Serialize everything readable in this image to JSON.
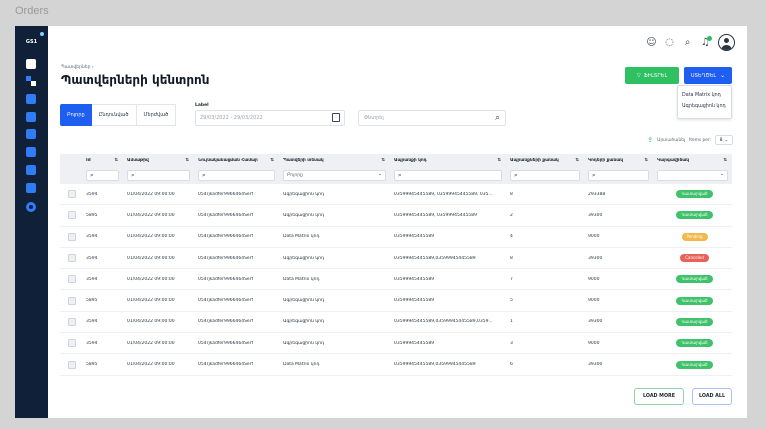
{
  "frame_title": "Orders",
  "logo_text": "GS1",
  "topbar": {
    "icons": [
      "user-switch-icon",
      "chat-icon",
      "search-icon",
      "bell-icon",
      "avatar"
    ]
  },
  "breadcrumb": "Պատվերներ ›",
  "page_title": "Պատվերների կենտրոն",
  "buttons": {
    "filter_label": "ՖԻԼՏՐԵԼ",
    "new_label": "ՍՏԵՂԾԵԼ",
    "load_more": "LOAD MORE",
    "load_all": "LOAD ALL"
  },
  "new_dropdown": [
    "Data Matrix կոդ",
    "Ագրեգացիոն կոդ"
  ],
  "tabs": [
    "Բոլորը",
    "Ընդունված",
    "Մերժված"
  ],
  "date_filter": {
    "label": "Label",
    "value": "29/03/2022 - 29/03/2022"
  },
  "search": {
    "placeholder": "Փնտրել"
  },
  "utility": {
    "upload_label": "Արտահանել",
    "items_per_page_label": "Items per:",
    "items_per_page_value": "8"
  },
  "table": {
    "headers": [
      "Id",
      "Ամսաթիվ",
      "Նույնականացման Համար",
      "Պատվերի տեսակ",
      "Ապրանքի կոդ",
      "Ապրանքների քանակ",
      "Կոդերի քանակ",
      "Կարգավիճակ"
    ],
    "filter_placeholders": [
      "",
      "",
      "",
      "Բոլորը",
      "",
      "",
      "",
      ""
    ],
    "rows": [
      {
        "id": "3594",
        "date": "01/04/2022 09:00:00",
        "ident": "054rjkadfer9966464Serf",
        "type": "Ագրեգացիոն կոդ",
        "codes": "03599945445589, 03599945445589, 035...",
        "qty": "8",
        "count": "293388",
        "status": "Կատարված",
        "status_color": "#3fc26a"
      },
      {
        "id": "5895",
        "date": "01/04/2022 09:00:00",
        "ident": "054rjkadfer9966464Serf",
        "type": "Ագրեգացիոն կոդ",
        "codes": "03599945445589, 03599945445589",
        "qty": "2",
        "count": "39300",
        "status": "Կատարված",
        "status_color": "#3fc26a"
      },
      {
        "id": "3594",
        "date": "01/04/2022 09:00:00",
        "ident": "054rjkadfer9966464Serf",
        "type": "Data Matrix կոդ",
        "codes": "03599945445589",
        "qty": "4",
        "count": "9000",
        "status": "Pending",
        "status_color": "#f2b84b"
      },
      {
        "id": "3594",
        "date": "01/04/2022 09:00:00",
        "ident": "054rjkadfer9966464Serf",
        "type": "Ագրեգացիոն կոդ",
        "codes": "03599945445589,03599945445589",
        "qty": "8",
        "count": "39300",
        "status": "Canceled",
        "status_color": "#e8625a"
      },
      {
        "id": "3594",
        "date": "01/04/2022 09:00:00",
        "ident": "054rjkadfer9966464Serf",
        "type": "Data Matrix կոդ",
        "codes": "03599945445589",
        "qty": "7",
        "count": "9000",
        "status": "Կատարված",
        "status_color": "#3fc26a"
      },
      {
        "id": "5895",
        "date": "01/04/2022 09:00:00",
        "ident": "054rjkadfer9966464Serf",
        "type": "Ագրեգացիոն կոդ",
        "codes": "03599945445589",
        "qty": "5",
        "count": "9000",
        "status": "Կատարված",
        "status_color": "#3fc26a"
      },
      {
        "id": "3594",
        "date": "01/04/2022 09:00:00",
        "ident": "054rjkadfer9966464Serf",
        "type": "Ագրեգացիոն կոդ",
        "codes": "03599945445589,03599945445589,0359...",
        "qty": "1",
        "count": "39300",
        "status": "Կատարված",
        "status_color": "#3fc26a"
      },
      {
        "id": "3594",
        "date": "01/04/2022 09:00:00",
        "ident": "054rjkadfer9966464Serf",
        "type": "Ագրեգացիոն կոդ",
        "codes": "03599945445589",
        "qty": "3",
        "count": "9000",
        "status": "Կատարված",
        "status_color": "#3fc26a"
      },
      {
        "id": "5895",
        "date": "01/04/2022 09:00:00",
        "ident": "054rjkadfer9966464Serf",
        "type": "Data Matrix կոդ",
        "codes": "03599945445589,03599945445589",
        "qty": "6",
        "count": "39300",
        "status": "Կատարված",
        "status_color": "#3fc26a"
      }
    ]
  },
  "colors": {
    "sidebar": "#0f2038",
    "primary": "#1e5ef0",
    "success": "#2fc061"
  }
}
